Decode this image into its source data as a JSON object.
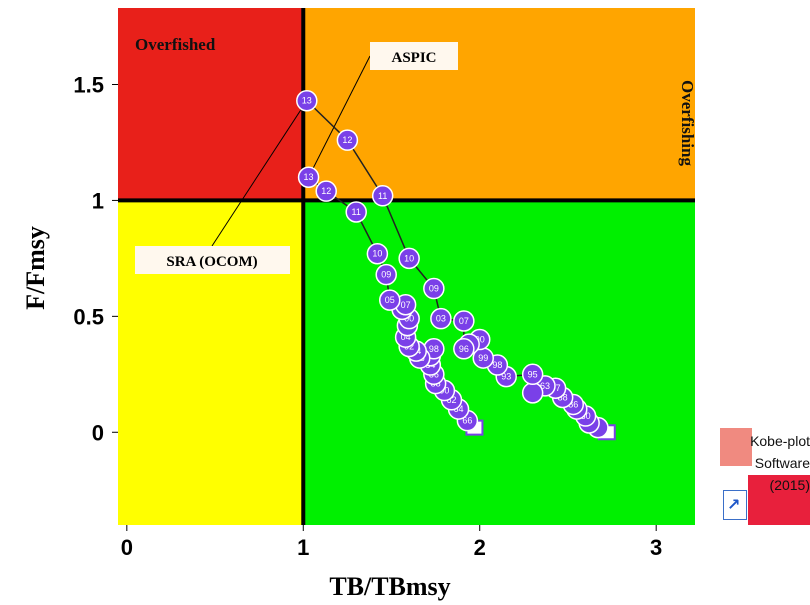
{
  "chart_data": {
    "type": "scatter",
    "xlabel": "TB/TBmsy",
    "ylabel": "F/Fmsy",
    "xlim": [
      -0.05,
      3.22
    ],
    "ylim": [
      -0.4,
      1.83
    ],
    "x_ticks": [
      0,
      1,
      2,
      3
    ],
    "y_ticks": [
      0,
      0.5,
      1,
      1.5
    ],
    "reference_lines": {
      "x": 1,
      "y": 1
    },
    "zones": [
      {
        "name": "overfished",
        "label": "Overfished",
        "color": "#e8201a"
      },
      {
        "name": "overfishing",
        "label": "Overfishing",
        "color": "#ffa500"
      },
      {
        "name": "lower-left",
        "label": "",
        "color": "#ffff00"
      },
      {
        "name": "lower-right",
        "label": "",
        "color": "#00f000"
      }
    ],
    "annotations": [
      {
        "text": "ASPIC",
        "target_series": "aspic"
      },
      {
        "text": "SRA (OCOM)",
        "target_series": "sra"
      }
    ],
    "marker_color": "#7a40e8",
    "series": [
      {
        "id": "aspic",
        "points": [
          {
            "x": 1.97,
            "y": 0.02,
            "label": ""
          },
          {
            "x": 1.93,
            "y": 0.05,
            "label": "66"
          },
          {
            "x": 1.88,
            "y": 0.1,
            "label": "64"
          },
          {
            "x": 1.84,
            "y": 0.14,
            "label": "62"
          },
          {
            "x": 1.8,
            "y": 0.18,
            "label": "90"
          },
          {
            "x": 1.75,
            "y": 0.21,
            "label": "88"
          },
          {
            "x": 1.74,
            "y": 0.25,
            "label": "86"
          },
          {
            "x": 1.72,
            "y": 0.29,
            "label": "84"
          },
          {
            "x": 1.72,
            "y": 0.33,
            "label": "82"
          },
          {
            "x": 1.74,
            "y": 0.36,
            "label": "98"
          },
          {
            "x": 1.66,
            "y": 0.32,
            "label": "96"
          },
          {
            "x": 1.64,
            "y": 0.35,
            "label": "94"
          },
          {
            "x": 1.6,
            "y": 0.37,
            "label": "92"
          },
          {
            "x": 1.58,
            "y": 0.41,
            "label": "04"
          },
          {
            "x": 1.59,
            "y": 0.46,
            "label": "08"
          },
          {
            "x": 1.6,
            "y": 0.49,
            "label": "00"
          },
          {
            "x": 1.56,
            "y": 0.53,
            "label": "06"
          },
          {
            "x": 1.58,
            "y": 0.55,
            "label": "07"
          },
          {
            "x": 1.49,
            "y": 0.57,
            "label": "05"
          },
          {
            "x": 1.47,
            "y": 0.68,
            "label": "09"
          },
          {
            "x": 1.42,
            "y": 0.77,
            "label": "10"
          },
          {
            "x": 1.3,
            "y": 0.95,
            "label": "11"
          },
          {
            "x": 1.13,
            "y": 1.04,
            "label": "12"
          },
          {
            "x": 1.03,
            "y": 1.1,
            "label": "13"
          }
        ]
      },
      {
        "id": "sra",
        "points": [
          {
            "x": 2.72,
            "y": 0.0,
            "label": ""
          },
          {
            "x": 2.67,
            "y": 0.02,
            "label": ""
          },
          {
            "x": 2.62,
            "y": 0.04,
            "label": ""
          },
          {
            "x": 2.6,
            "y": 0.07,
            "label": "80"
          },
          {
            "x": 2.55,
            "y": 0.1,
            "label": "84"
          },
          {
            "x": 2.53,
            "y": 0.12,
            "label": "86"
          },
          {
            "x": 2.47,
            "y": 0.15,
            "label": "88"
          },
          {
            "x": 2.43,
            "y": 0.19,
            "label": "97"
          },
          {
            "x": 2.37,
            "y": 0.2,
            "label": "63"
          },
          {
            "x": 2.3,
            "y": 0.17,
            "label": ""
          },
          {
            "x": 2.3,
            "y": 0.25,
            "label": "95"
          },
          {
            "x": 2.15,
            "y": 0.24,
            "label": "93"
          },
          {
            "x": 2.1,
            "y": 0.29,
            "label": "98"
          },
          {
            "x": 2.02,
            "y": 0.32,
            "label": "99"
          },
          {
            "x": 2.0,
            "y": 0.4,
            "label": "00"
          },
          {
            "x": 1.94,
            "y": 0.38,
            "label": ""
          },
          {
            "x": 1.91,
            "y": 0.36,
            "label": "96"
          },
          {
            "x": 1.91,
            "y": 0.48,
            "label": "07"
          },
          {
            "x": 1.78,
            "y": 0.49,
            "label": "03"
          },
          {
            "x": 1.74,
            "y": 0.62,
            "label": "09"
          },
          {
            "x": 1.6,
            "y": 0.75,
            "label": "10"
          },
          {
            "x": 1.45,
            "y": 1.02,
            "label": "11"
          },
          {
            "x": 1.25,
            "y": 1.26,
            "label": "12"
          },
          {
            "x": 1.02,
            "y": 1.43,
            "label": "13"
          }
        ]
      }
    ]
  },
  "logo": {
    "line1": "Kobe-plot",
    "line2": "Software",
    "line3": "(2015)",
    "arrow_icon": "↗"
  }
}
